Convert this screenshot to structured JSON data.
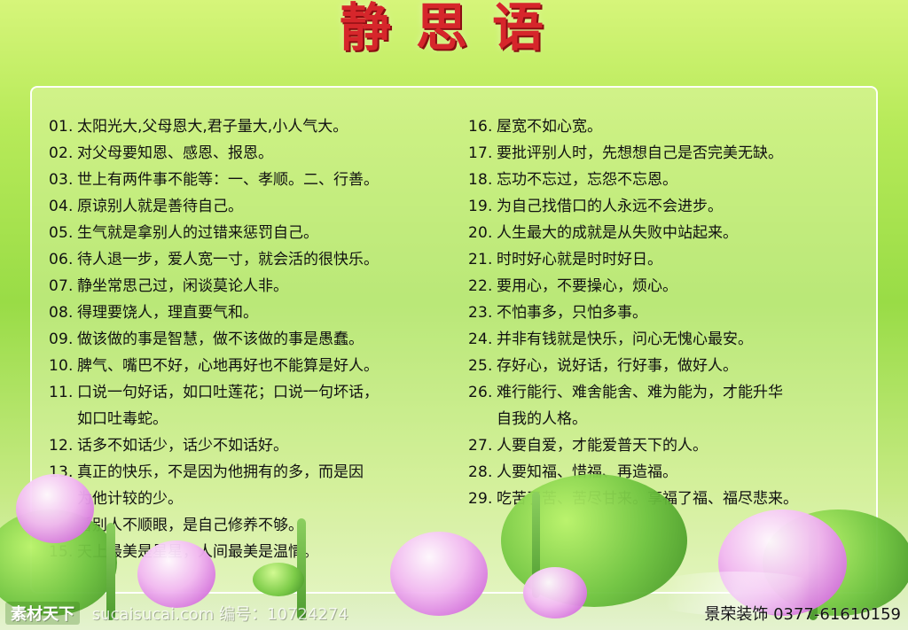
{
  "title": "静思语",
  "left_items": [
    {
      "num": "01.",
      "text": "太阳光大,父母恩大,君子量大,小人气大。"
    },
    {
      "num": "02.",
      "text": "对父母要知恩、感恩、报恩。"
    },
    {
      "num": "03.",
      "text": "世上有两件事不能等：一、孝顺。二、行善。"
    },
    {
      "num": "04.",
      "text": "原谅别人就是善待自己。"
    },
    {
      "num": "05.",
      "text": "生气就是拿别人的过错来惩罚自己。"
    },
    {
      "num": "06.",
      "text": "待人退一步，爱人宽一寸，就会活的很快乐。"
    },
    {
      "num": "07.",
      "text": "静坐常思己过，闲谈莫论人非。"
    },
    {
      "num": "08.",
      "text": "得理要饶人，理直要气和。"
    },
    {
      "num": "09.",
      "text": "做该做的事是智慧，做不该做的事是愚蠢。"
    },
    {
      "num": "10.",
      "text": "脾气、嘴巴不好，心地再好也不能算是好人。"
    },
    {
      "num": "11.",
      "text": "口说一句好话，如口吐莲花；口说一句坏话，",
      "cont": "如口吐毒蛇。"
    },
    {
      "num": "12.",
      "text": "话多不如话少，话少不如话好。"
    },
    {
      "num": "13.",
      "text": "真正的快乐，不是因为他拥有的多，而是因",
      "cont": "为他计较的少。"
    },
    {
      "num": "14.",
      "text": "看别人不顺眼，是自己修养不够。"
    },
    {
      "num": "15.",
      "text": "天上最美是星星，人间最美是温情。"
    }
  ],
  "right_items": [
    {
      "num": "16.",
      "text": "屋宽不如心宽。"
    },
    {
      "num": "17.",
      "text": "要批评别人时，先想想自己是否完美无缺。"
    },
    {
      "num": "18.",
      "text": "忘功不忘过，忘怨不忘恩。"
    },
    {
      "num": "19.",
      "text": "为自己找借口的人永远不会进步。"
    },
    {
      "num": "20.",
      "text": "人生最大的成就是从失败中站起来。"
    },
    {
      "num": "21.",
      "text": "时时好心就是时时好日。"
    },
    {
      "num": "22.",
      "text": "要用心，不要操心，烦心。"
    },
    {
      "num": "23.",
      "text": "不怕事多，只怕多事。"
    },
    {
      "num": "24.",
      "text": "并非有钱就是快乐，问心无愧心最安。"
    },
    {
      "num": "25.",
      "text": "存好心，说好话，行好事，做好人。"
    },
    {
      "num": "26.",
      "text": "难行能行、难舍能舍、难为能为，才能升华",
      "cont": "自我的人格。"
    },
    {
      "num": "27.",
      "text": "人要自爱，才能爱普天下的人。"
    },
    {
      "num": "28.",
      "text": "人要知福、惜福、再造福。"
    },
    {
      "num": "29.",
      "text": "吃苦了苦、苦尽甘来。享福了福、福尽悲来。"
    }
  ],
  "footer": {
    "left_logo": "素材天下",
    "left_text": "sucaisucai.com  编号：10724274",
    "right_text": "景荣装饰  0377-61610159"
  }
}
